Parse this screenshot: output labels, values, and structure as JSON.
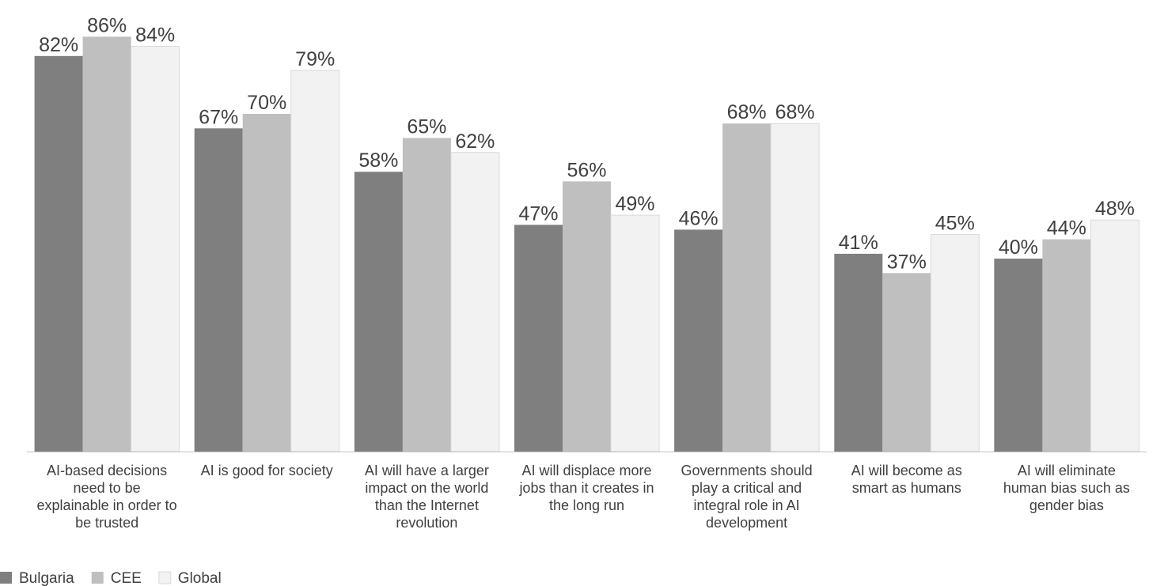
{
  "chart_data": {
    "type": "bar",
    "title": "",
    "xlabel": "",
    "ylabel": "",
    "ylim": [
      0,
      100
    ],
    "grid": false,
    "legend_position": "bottom-left",
    "value_suffix": "%",
    "categories": [
      [
        "AI-based decisions",
        "need to be",
        "explainable in order to",
        "be trusted"
      ],
      [
        "AI is good for society"
      ],
      [
        "AI will have a larger",
        "impact on the world",
        "than the Internet",
        "revolution"
      ],
      [
        "AI will displace more",
        "jobs than it creates in",
        "the long run"
      ],
      [
        "Governments should",
        "play a critical and",
        "integral role in AI",
        "development"
      ],
      [
        "AI will become as",
        "smart as humans"
      ],
      [
        "AI will eliminate",
        "human bias such as",
        "gender bias"
      ]
    ],
    "series": [
      {
        "name": "Bulgaria",
        "color": "#7f7f7f",
        "values": [
          82,
          67,
          58,
          47,
          46,
          41,
          40
        ]
      },
      {
        "name": "CEE",
        "color": "#bfbfbf",
        "values": [
          86,
          70,
          65,
          56,
          68,
          37,
          44
        ]
      },
      {
        "name": "Global",
        "color": "#f2f2f2",
        "values": [
          84,
          79,
          62,
          49,
          68,
          45,
          48
        ]
      }
    ]
  }
}
